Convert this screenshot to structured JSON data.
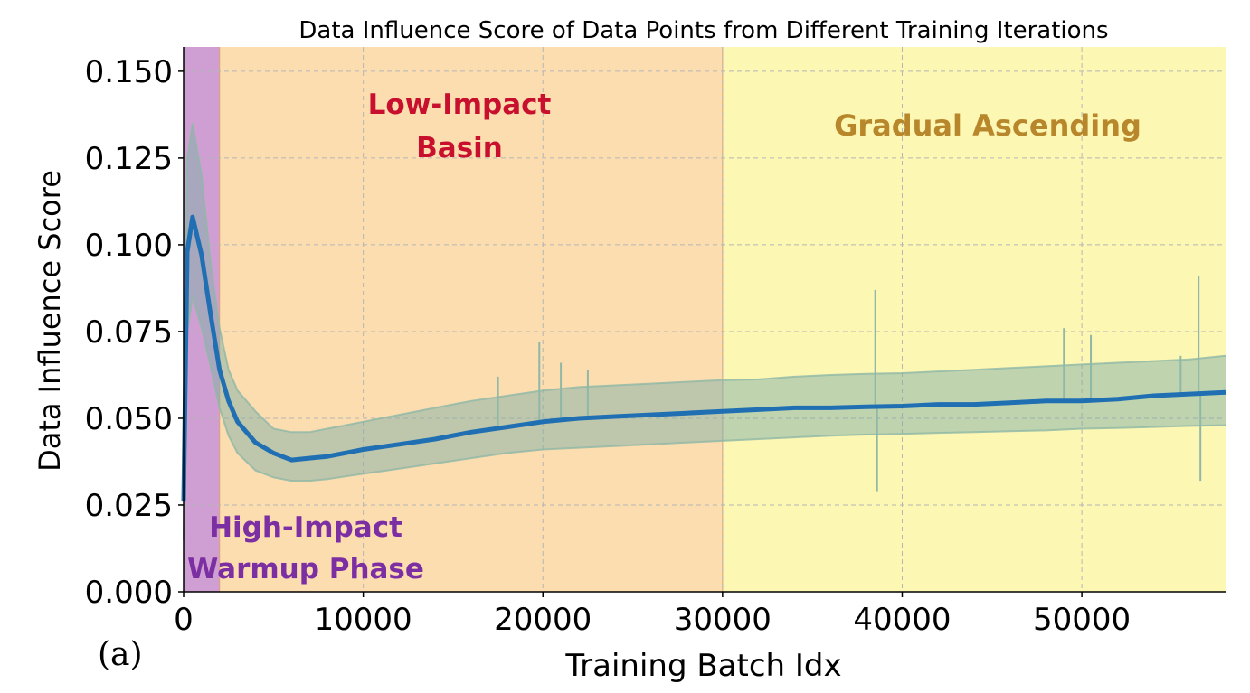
{
  "chart_data": {
    "type": "line",
    "title": "Data Influence Score of Data Points from Different Training Iterations",
    "xlabel": "Training Batch Idx",
    "ylabel": "Data Influence Score",
    "panel_label": "(a)",
    "xlim": [
      0,
      58000
    ],
    "ylim": [
      0,
      0.157
    ],
    "x_ticks": [
      0,
      10000,
      20000,
      30000,
      40000,
      50000
    ],
    "x_tick_labels": [
      "0",
      "10000",
      "20000",
      "30000",
      "40000",
      "50000"
    ],
    "y_ticks": [
      0.0,
      0.025,
      0.05,
      0.075,
      0.1,
      0.125,
      0.15
    ],
    "y_tick_labels": [
      "0.000",
      "0.025",
      "0.050",
      "0.075",
      "0.100",
      "0.125",
      "0.150"
    ],
    "grid": true,
    "regions": [
      {
        "label_lines": [
          "High-Impact",
          "Warmup Phase"
        ],
        "x_start": 0,
        "x_end": 2000,
        "color": "#cf9fd3",
        "text_color": "#7b2fa3"
      },
      {
        "label_lines": [
          "Low-Impact",
          "Basin"
        ],
        "x_start": 2000,
        "x_end": 30000,
        "color": "#fcddb0",
        "text_color": "#c8102e"
      },
      {
        "label_lines": [
          "Gradual Ascending"
        ],
        "x_start": 30000,
        "x_end": 58000,
        "color": "#fdf7b4",
        "text_color": "#b8862b"
      }
    ],
    "series": [
      {
        "color": "#1f6fb2",
        "band_color": "#7fb0a8",
        "x": [
          0,
          200,
          500,
          1000,
          1500,
          2000,
          2500,
          3000,
          4000,
          5000,
          6000,
          7000,
          8000,
          10000,
          12000,
          14000,
          16000,
          18000,
          20000,
          22000,
          24000,
          26000,
          28000,
          30000,
          32000,
          34000,
          36000,
          38000,
          40000,
          42000,
          44000,
          46000,
          48000,
          50000,
          52000,
          54000,
          56000,
          58000
        ],
        "mean": [
          0.026,
          0.098,
          0.108,
          0.097,
          0.08,
          0.064,
          0.055,
          0.049,
          0.043,
          0.04,
          0.038,
          0.0385,
          0.039,
          0.041,
          0.0425,
          0.044,
          0.046,
          0.0475,
          0.049,
          0.05,
          0.0505,
          0.051,
          0.0515,
          0.052,
          0.0525,
          0.053,
          0.053,
          0.0533,
          0.0535,
          0.054,
          0.054,
          0.0545,
          0.055,
          0.055,
          0.0555,
          0.0565,
          0.057,
          0.0575
        ],
        "upper": [
          0.04,
          0.125,
          0.135,
          0.12,
          0.095,
          0.076,
          0.064,
          0.058,
          0.052,
          0.047,
          0.046,
          0.046,
          0.047,
          0.049,
          0.051,
          0.053,
          0.055,
          0.0565,
          0.058,
          0.059,
          0.0595,
          0.06,
          0.0605,
          0.061,
          0.0612,
          0.062,
          0.0625,
          0.0628,
          0.063,
          0.0635,
          0.064,
          0.0645,
          0.065,
          0.0655,
          0.066,
          0.0665,
          0.067,
          0.068
        ],
        "lower": [
          0.015,
          0.075,
          0.085,
          0.076,
          0.065,
          0.053,
          0.045,
          0.04,
          0.035,
          0.033,
          0.032,
          0.032,
          0.0325,
          0.034,
          0.0355,
          0.037,
          0.0385,
          0.04,
          0.041,
          0.0415,
          0.042,
          0.0425,
          0.043,
          0.0435,
          0.044,
          0.0445,
          0.045,
          0.0453,
          0.0455,
          0.0458,
          0.046,
          0.0463,
          0.0465,
          0.047,
          0.0472,
          0.0475,
          0.0478,
          0.048
        ],
        "spikes": [
          {
            "x": 17500,
            "y": 0.062
          },
          {
            "x": 19800,
            "y": 0.072
          },
          {
            "x": 21000,
            "y": 0.066
          },
          {
            "x": 22500,
            "y": 0.064
          },
          {
            "x": 38500,
            "y": 0.087
          },
          {
            "x": 38600,
            "y": 0.029
          },
          {
            "x": 49000,
            "y": 0.076
          },
          {
            "x": 55500,
            "y": 0.068
          },
          {
            "x": 56500,
            "y": 0.091
          },
          {
            "x": 56600,
            "y": 0.032
          },
          {
            "x": 50500,
            "y": 0.074
          }
        ]
      }
    ]
  }
}
